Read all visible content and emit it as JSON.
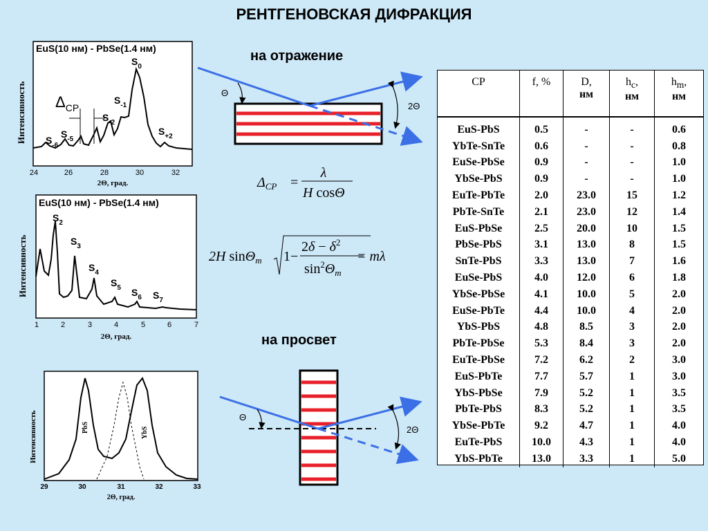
{
  "title": "РЕНТГЕНОВСКАЯ ДИФРАКЦИЯ",
  "reflection_label": "на отражение",
  "transmission_label": "на просвет",
  "theta_symbol": "Θ",
  "two_theta_symbol": "2Θ",
  "charts": [
    {
      "title": "EuS(10 нм) - PbSe(1.4 нм)",
      "ylabel": "Интенсивность",
      "xlabel": "2Θ, град.",
      "xticks": [
        "24",
        "26",
        "28",
        "30",
        "32"
      ],
      "peaks": [
        {
          "base": "S",
          "sub": "-6"
        },
        {
          "base": "S",
          "sub": "-5"
        },
        {
          "base": "S",
          "sub": "-2"
        },
        {
          "base": "S",
          "sub": "-1"
        },
        {
          "base": "S",
          "sub": "0"
        },
        {
          "base": "S",
          "sub": "+2"
        }
      ],
      "delta_label": {
        "base": "Δ",
        "sub": "CP"
      }
    },
    {
      "title": "EuS(10 нм) - PbSe(1.4 нм)",
      "ylabel": "Интенсивность",
      "xlabel": "2Θ, град.",
      "xticks": [
        "1",
        "2",
        "3",
        "4",
        "5",
        "6",
        "7"
      ],
      "peaks": [
        {
          "base": "S",
          "sub": "2"
        },
        {
          "base": "S",
          "sub": "3"
        },
        {
          "base": "S",
          "sub": "4"
        },
        {
          "base": "S",
          "sub": "5"
        },
        {
          "base": "S",
          "sub": "6"
        },
        {
          "base": "S",
          "sub": "7"
        }
      ]
    },
    {
      "ylabel": "Интенсивность",
      "xlabel": "2Θ, град.",
      "xticks": [
        "29",
        "30",
        "31",
        "32",
        "33"
      ],
      "curve_labels": [
        "PbS",
        "YbS"
      ]
    }
  ],
  "formulas": {
    "delta": "Δ_CP = λ / (H cosΘ)",
    "bragg": "2H sinΘ_m √(1 − (2δ − δ²)/sin²Θ_m) = mλ"
  },
  "table": {
    "headers": [
      {
        "name": "СР",
        "unit": ""
      },
      {
        "name": "f, %",
        "unit": ""
      },
      {
        "name": "D,",
        "unit": "нм"
      },
      {
        "name": "h",
        "sub": "c",
        "suffix": ",",
        "unit": "нм"
      },
      {
        "name": "h",
        "sub": "m",
        "suffix": ",",
        "unit": "нм"
      }
    ],
    "rows": [
      [
        "EuS-PbS",
        "0.5",
        "-",
        "-",
        "0.6"
      ],
      [
        "YbTe-SnTe",
        "0.6",
        "-",
        "-",
        "0.8"
      ],
      [
        "EuSe-PbSe",
        "0.9",
        "-",
        "-",
        "1.0"
      ],
      [
        "YbSe-PbS",
        "0.9",
        "-",
        "-",
        "1.0"
      ],
      [
        "EuTe-PbTe",
        "2.0",
        "23.0",
        "15",
        "1.2"
      ],
      [
        "PbTe-SnTe",
        "2.1",
        "23.0",
        "12",
        "1.4"
      ],
      [
        "EuS-PbSe",
        "2.5",
        "20.0",
        "10",
        "1.5"
      ],
      [
        "PbSe-PbS",
        "3.1",
        "13.0",
        "8",
        "1.5"
      ],
      [
        "SnTe-PbS",
        "3.3",
        "13.0",
        "7",
        "1.6"
      ],
      [
        "EuSe-PbS",
        "4.0",
        "12.0",
        "6",
        "1.8"
      ],
      [
        "YbSe-PbSe",
        "4.1",
        "10.0",
        "5",
        "2.0"
      ],
      [
        "EuSe-PbTe",
        "4.4",
        "10.0",
        "4",
        "2.0"
      ],
      [
        "YbS-PbS",
        "4.8",
        "8.5",
        "3",
        "2.0"
      ],
      [
        "PbTe-PbSe",
        "5.3",
        "8.4",
        "3",
        "2.0"
      ],
      [
        "EuTe-PbSe",
        "7.2",
        "6.2",
        "2",
        "3.0"
      ],
      [
        "EuS-PbTe",
        "7.7",
        "5.7",
        "1",
        "3.0"
      ],
      [
        "YbS-PbSe",
        "7.9",
        "5.2",
        "1",
        "3.5"
      ],
      [
        "PbTe-PbS",
        "8.3",
        "5.2",
        "1",
        "3.5"
      ],
      [
        "YbSe-PbTe",
        "9.2",
        "4.7",
        "1",
        "4.0"
      ],
      [
        "EuTe-PbS",
        "10.0",
        "4.3",
        "1",
        "4.0"
      ],
      [
        "YbS-PbTe",
        "13.0",
        "3.3",
        "1",
        "5.0"
      ]
    ]
  },
  "colors": {
    "background": "#cde8f7",
    "beam": "#3b6fe6",
    "layer": "#e8202a"
  }
}
